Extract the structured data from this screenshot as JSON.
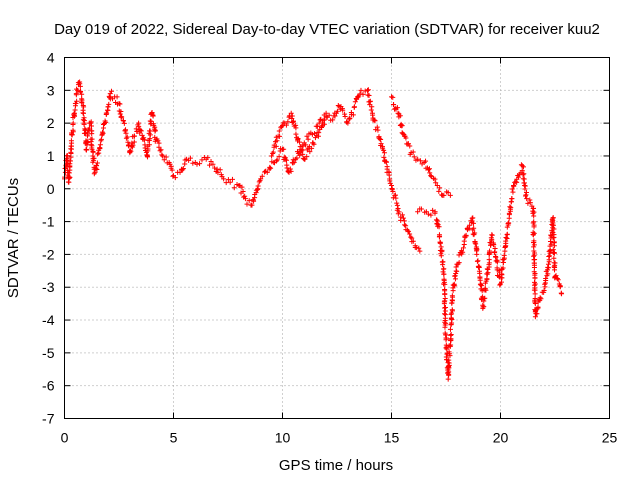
{
  "chart_data": {
    "type": "scatter",
    "title": "Day 019 of 2022, Sidereal Day-to-day VTEC variation (SDTVAR) for receiver kuu2",
    "xlabel": "GPS time / hours",
    "ylabel": "SDTVAR / TECUs",
    "xlim": [
      0,
      25
    ],
    "ylim": [
      -7,
      4
    ],
    "xticks": [
      0,
      5,
      10,
      15,
      20,
      25
    ],
    "yticks": [
      -7,
      -6,
      -5,
      -4,
      -3,
      -2,
      -1,
      0,
      1,
      2,
      3,
      4
    ],
    "grid": true,
    "marker": "+",
    "color": "#ff0000",
    "series": [
      {
        "name": "SDTVAR",
        "trace": [
          [
            0.0,
            0.3
          ],
          [
            0.1,
            1.0
          ],
          [
            0.2,
            0.2
          ],
          [
            0.3,
            1.3
          ],
          [
            0.4,
            2.0
          ],
          [
            0.5,
            2.6
          ],
          [
            0.6,
            3.0
          ],
          [
            0.7,
            3.2
          ],
          [
            0.8,
            2.7
          ],
          [
            0.9,
            2.0
          ],
          [
            1.0,
            1.2
          ],
          [
            1.1,
            1.8
          ],
          [
            1.2,
            2.0
          ],
          [
            1.3,
            1.0
          ],
          [
            1.4,
            0.5
          ],
          [
            2.1,
            2.9
          ],
          [
            2.3,
            2.8
          ],
          [
            2.5,
            2.6
          ],
          [
            2.6,
            2.2
          ],
          [
            2.8,
            1.8
          ],
          [
            3.0,
            1.1
          ],
          [
            3.2,
            1.6
          ],
          [
            3.4,
            2.0
          ],
          [
            3.6,
            1.5
          ],
          [
            3.8,
            1.0
          ],
          [
            4.0,
            2.3
          ],
          [
            4.2,
            1.5
          ],
          [
            4.5,
            1.0
          ],
          [
            4.8,
            0.8
          ],
          [
            5.0,
            0.4
          ],
          [
            5.3,
            0.5
          ],
          [
            5.6,
            0.9
          ],
          [
            6.0,
            0.8
          ],
          [
            6.5,
            0.9
          ],
          [
            7.0,
            0.6
          ],
          [
            7.3,
            0.3
          ],
          [
            7.6,
            0.2
          ],
          [
            8.0,
            0.1
          ],
          [
            8.3,
            -0.3
          ],
          [
            8.6,
            -0.5
          ],
          [
            9.0,
            0.3
          ],
          [
            9.3,
            0.5
          ],
          [
            9.6,
            0.8
          ],
          [
            10.0,
            1.2
          ],
          [
            10.3,
            0.5
          ],
          [
            10.6,
            0.9
          ],
          [
            11.0,
            1.4
          ],
          [
            11.3,
            1.7
          ],
          [
            11.6,
            1.9
          ],
          [
            12.0,
            2.3
          ],
          [
            12.3,
            2.1
          ],
          [
            12.6,
            2.5
          ],
          [
            13.0,
            2.0
          ],
          [
            13.3,
            2.5
          ],
          [
            13.6,
            3.0
          ],
          [
            13.9,
            3.0
          ],
          [
            14.2,
            2.1
          ],
          [
            14.5,
            1.5
          ],
          [
            14.8,
            0.6
          ],
          [
            15.0,
            0.1
          ],
          [
            15.3,
            -0.6
          ],
          [
            15.6,
            -1.1
          ],
          [
            16.0,
            -1.6
          ],
          [
            16.3,
            -1.9
          ],
          [
            16.2,
            -0.7
          ],
          [
            16.6,
            -0.7
          ],
          [
            17.0,
            -0.7
          ],
          [
            17.2,
            -1.4
          ],
          [
            17.4,
            -2.6
          ],
          [
            17.5,
            -4.6
          ],
          [
            17.6,
            -5.8
          ],
          [
            17.8,
            -3.3
          ],
          [
            18.0,
            -2.3
          ],
          [
            18.3,
            -1.8
          ],
          [
            18.5,
            -1.2
          ],
          [
            18.7,
            -0.9
          ],
          [
            19.0,
            -2.4
          ],
          [
            19.2,
            -3.6
          ],
          [
            19.4,
            -2.6
          ],
          [
            19.6,
            -1.4
          ],
          [
            19.8,
            -2.2
          ],
          [
            20.0,
            -2.9
          ],
          [
            20.2,
            -1.9
          ],
          [
            20.4,
            -0.9
          ],
          [
            20.6,
            0.1
          ],
          [
            21.0,
            0.7
          ],
          [
            21.2,
            -0.3
          ],
          [
            21.5,
            -0.6
          ],
          [
            21.6,
            -3.9
          ],
          [
            21.8,
            -3.4
          ],
          [
            22.0,
            -3.1
          ],
          [
            22.2,
            -2.3
          ],
          [
            22.4,
            -0.9
          ],
          [
            22.5,
            -2.7
          ],
          [
            22.7,
            -2.9
          ],
          [
            22.8,
            -3.2
          ],
          [
            15.0,
            2.8
          ],
          [
            15.3,
            2.3
          ],
          [
            15.6,
            1.6
          ],
          [
            15.9,
            1.1
          ],
          [
            16.2,
            0.9
          ],
          [
            16.5,
            0.8
          ],
          [
            16.8,
            0.4
          ],
          [
            17.1,
            0.1
          ],
          [
            17.4,
            -0.2
          ],
          [
            17.7,
            -0.2
          ],
          [
            9.5,
            1.0
          ],
          [
            9.8,
            1.6
          ],
          [
            10.1,
            2.0
          ],
          [
            10.4,
            2.3
          ],
          [
            10.7,
            1.5
          ],
          [
            11.0,
            0.9
          ],
          [
            11.4,
            1.4
          ],
          [
            12.0,
            2.2
          ]
        ]
      }
    ]
  }
}
